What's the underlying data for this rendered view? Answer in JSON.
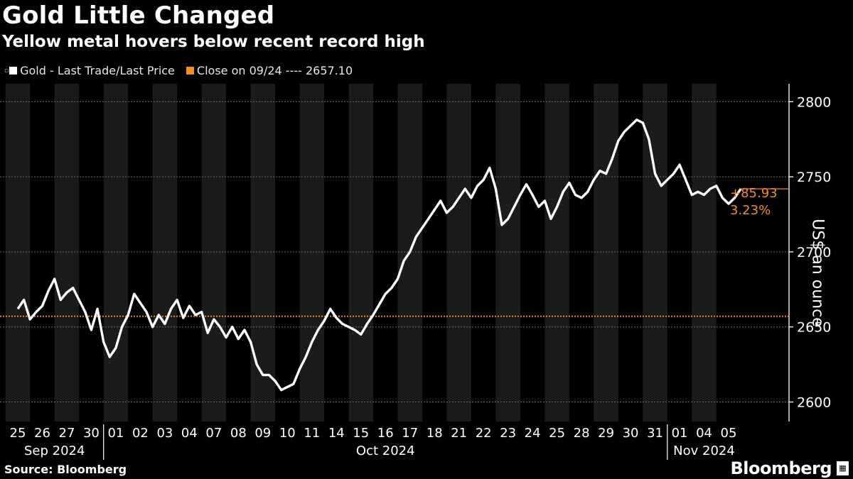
{
  "title": "Gold Little Changed",
  "subtitle": "Yellow metal hovers below recent record high",
  "legend": {
    "series_label": "Gold - Last Trade/Last Price",
    "close_label": "Close on 09/24 ---- 2657.10",
    "series_color": "#ffffff",
    "close_color": "#f28c1b"
  },
  "source": "Source: Bloomberg",
  "brand": "Bloomberg",
  "y_axis_label": "US$ an ounce",
  "annotation": {
    "change": "+85.93",
    "pct": "3.23%"
  },
  "chart_data": {
    "type": "line",
    "ylabel": "US$ an ounce",
    "ylim": [
      2587,
      2812
    ],
    "yticks": [
      2600,
      2650,
      2700,
      2750,
      2800
    ],
    "grid": true,
    "reference_line": {
      "label": "Close on 09/24",
      "value": 2657.1
    },
    "x_day_labels": [
      "25",
      "26",
      "27",
      "30",
      "01",
      "02",
      "03",
      "04",
      "07",
      "08",
      "09",
      "10",
      "11",
      "14",
      "15",
      "16",
      "17",
      "18",
      "21",
      "22",
      "23",
      "24",
      "25",
      "28",
      "29",
      "30",
      "31",
      "01",
      "04",
      "05"
    ],
    "x_month_labels": [
      {
        "label": "Sep 2024",
        "from": 0,
        "to": 3
      },
      {
        "label": "Oct 2024",
        "from": 4,
        "to": 26
      },
      {
        "label": "Nov 2024",
        "from": 27,
        "to": 29
      }
    ],
    "series": [
      {
        "name": "Gold - Last Trade/Last Price",
        "color": "#ffffff",
        "values": [
          [
            0,
            2662
          ],
          [
            0.25,
            2668
          ],
          [
            0.5,
            2655
          ],
          [
            0.75,
            2660
          ],
          [
            1,
            2664
          ],
          [
            1.25,
            2674
          ],
          [
            1.5,
            2682
          ],
          [
            1.75,
            2668
          ],
          [
            2,
            2673
          ],
          [
            2.25,
            2676
          ],
          [
            2.5,
            2668
          ],
          [
            2.75,
            2660
          ],
          [
            3,
            2648
          ],
          [
            3.25,
            2662
          ],
          [
            3.5,
            2640
          ],
          [
            3.75,
            2630
          ],
          [
            4,
            2636
          ],
          [
            4.25,
            2650
          ],
          [
            4.5,
            2658
          ],
          [
            4.75,
            2672
          ],
          [
            5,
            2666
          ],
          [
            5.25,
            2660
          ],
          [
            5.5,
            2650
          ],
          [
            5.75,
            2658
          ],
          [
            6,
            2652
          ],
          [
            6.25,
            2662
          ],
          [
            6.5,
            2668
          ],
          [
            6.75,
            2656
          ],
          [
            7,
            2664
          ],
          [
            7.25,
            2658
          ],
          [
            7.5,
            2660
          ],
          [
            7.75,
            2646
          ],
          [
            8,
            2655
          ],
          [
            8.25,
            2650
          ],
          [
            8.5,
            2643
          ],
          [
            8.75,
            2650
          ],
          [
            9,
            2642
          ],
          [
            9.25,
            2648
          ],
          [
            9.5,
            2640
          ],
          [
            9.75,
            2625
          ],
          [
            10,
            2618
          ],
          [
            10.25,
            2618
          ],
          [
            10.5,
            2614
          ],
          [
            10.75,
            2608
          ],
          [
            11,
            2610
          ],
          [
            11.25,
            2612
          ],
          [
            11.5,
            2622
          ],
          [
            11.75,
            2630
          ],
          [
            12,
            2640
          ],
          [
            12.25,
            2648
          ],
          [
            12.5,
            2654
          ],
          [
            12.75,
            2662
          ],
          [
            13,
            2656
          ],
          [
            13.25,
            2652
          ],
          [
            13.5,
            2650
          ],
          [
            13.75,
            2648
          ],
          [
            14,
            2645
          ],
          [
            14.25,
            2652
          ],
          [
            14.5,
            2658
          ],
          [
            14.75,
            2665
          ],
          [
            15,
            2672
          ],
          [
            15.25,
            2676
          ],
          [
            15.5,
            2682
          ],
          [
            15.75,
            2694
          ],
          [
            16,
            2700
          ],
          [
            16.25,
            2710
          ],
          [
            16.5,
            2716
          ],
          [
            16.75,
            2722
          ],
          [
            17,
            2728
          ],
          [
            17.25,
            2734
          ],
          [
            17.5,
            2726
          ],
          [
            17.75,
            2730
          ],
          [
            18,
            2736
          ],
          [
            18.25,
            2742
          ],
          [
            18.5,
            2736
          ],
          [
            18.75,
            2744
          ],
          [
            19,
            2748
          ],
          [
            19.25,
            2756
          ],
          [
            19.5,
            2742
          ],
          [
            19.75,
            2718
          ],
          [
            20,
            2722
          ],
          [
            20.25,
            2730
          ],
          [
            20.5,
            2738
          ],
          [
            20.75,
            2745
          ],
          [
            21,
            2738
          ],
          [
            21.25,
            2730
          ],
          [
            21.5,
            2734
          ],
          [
            21.75,
            2722
          ],
          [
            22,
            2730
          ],
          [
            22.25,
            2740
          ],
          [
            22.5,
            2746
          ],
          [
            22.75,
            2738
          ],
          [
            23,
            2736
          ],
          [
            23.25,
            2740
          ],
          [
            23.5,
            2748
          ],
          [
            23.75,
            2754
          ],
          [
            24,
            2752
          ],
          [
            24.25,
            2762
          ],
          [
            24.5,
            2774
          ],
          [
            24.75,
            2780
          ],
          [
            25,
            2784
          ],
          [
            25.25,
            2788
          ],
          [
            25.5,
            2786
          ],
          [
            25.75,
            2775
          ],
          [
            26,
            2752
          ],
          [
            26.25,
            2744
          ],
          [
            26.5,
            2748
          ],
          [
            26.75,
            2752
          ],
          [
            27,
            2758
          ],
          [
            27.25,
            2748
          ],
          [
            27.5,
            2738
          ],
          [
            27.75,
            2740
          ],
          [
            28,
            2738
          ],
          [
            28.25,
            2742
          ],
          [
            28.5,
            2744
          ],
          [
            28.75,
            2736
          ],
          [
            29,
            2732
          ],
          [
            29.25,
            2736
          ],
          [
            29.5,
            2742
          ]
        ]
      }
    ]
  }
}
